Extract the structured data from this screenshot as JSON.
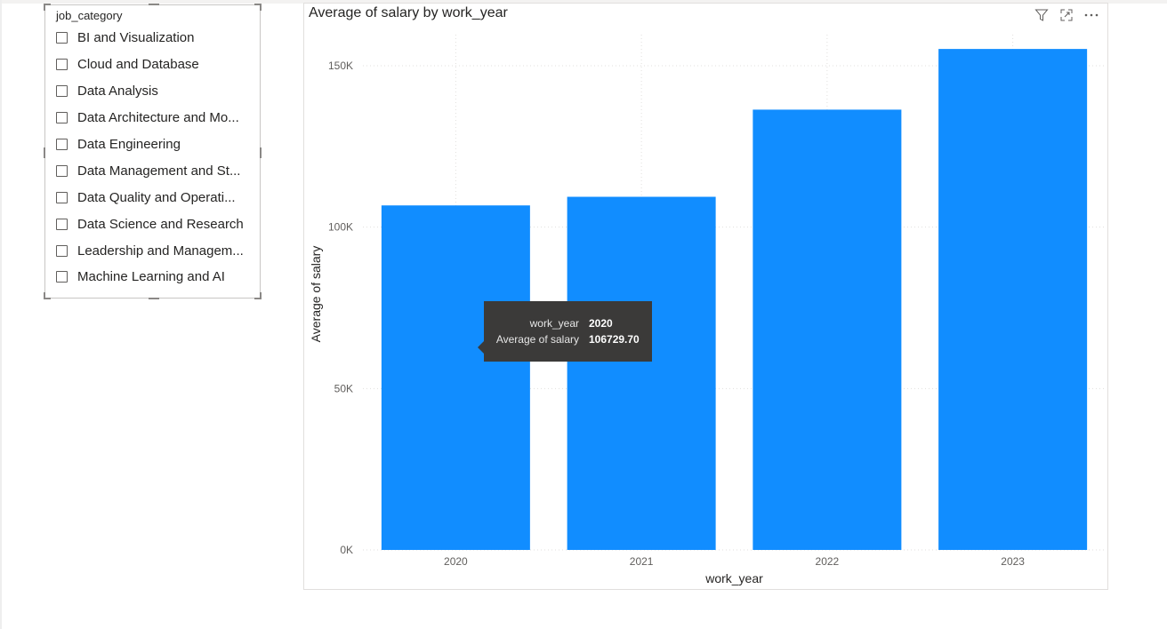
{
  "slicer": {
    "header": "job_category",
    "items": [
      {
        "label": "BI and Visualization",
        "checked": false
      },
      {
        "label": "Cloud and Database",
        "checked": false
      },
      {
        "label": "Data Analysis",
        "checked": false
      },
      {
        "label": "Data Architecture and Mo...",
        "checked": false
      },
      {
        "label": "Data Engineering",
        "checked": false
      },
      {
        "label": "Data Management and St...",
        "checked": false
      },
      {
        "label": "Data Quality and Operati...",
        "checked": false
      },
      {
        "label": "Data Science and Research",
        "checked": false
      },
      {
        "label": "Leadership and Managem...",
        "checked": false
      },
      {
        "label": "Machine Learning and AI",
        "checked": false
      }
    ]
  },
  "visual": {
    "title": "Average of salary by work_year",
    "actions": [
      {
        "name": "filter-icon"
      },
      {
        "name": "focus-mode-icon"
      },
      {
        "name": "more-options-icon"
      }
    ]
  },
  "chart_data": {
    "type": "bar",
    "title": "Average of salary by work_year",
    "xlabel": "work_year",
    "ylabel": "Average of salary",
    "categories": [
      "2020",
      "2021",
      "2022",
      "2023"
    ],
    "values": [
      106729.7,
      109400,
      136400,
      155200
    ],
    "ylim": [
      0,
      150000
    ],
    "yticks": [
      0,
      50000,
      100000,
      150000
    ],
    "ytick_labels": [
      "0K",
      "50K",
      "100K",
      "150K"
    ],
    "bar_color": "#118DFF",
    "grid": "dotted"
  },
  "tooltip": {
    "rows": [
      {
        "key": "work_year",
        "value": "2020"
      },
      {
        "key": "Average of salary",
        "value": "106729.70"
      }
    ]
  }
}
